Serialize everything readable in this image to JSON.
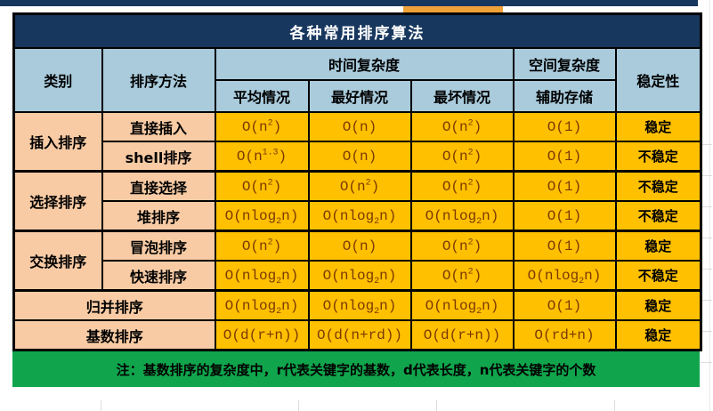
{
  "title": "各种常用排序算法",
  "header": {
    "category": "类别",
    "method": "排序方法",
    "time_complexity": "时间复杂度",
    "space_complexity": "空间复杂度",
    "stability": "稳定性",
    "avg": "平均情况",
    "best": "最好情况",
    "worst": "最坏情况",
    "aux": "辅助存储"
  },
  "rows": [
    {
      "category": "插入排序",
      "method": "直接插入",
      "avg": "O(n^{2})",
      "best": "O(n)",
      "worst": "O(n^{2})",
      "aux": "O(1)",
      "stability": "稳定"
    },
    {
      "category": "插入排序",
      "method": "shell排序",
      "avg": "O(n^{1.3})",
      "best": "O(n)",
      "worst": "O(n^{2})",
      "aux": "O(1)",
      "stability": "不稳定"
    },
    {
      "category": "选择排序",
      "method": "直接选择",
      "avg": "O(n^{2})",
      "best": "O(n^{2})",
      "worst": "O(n^{2})",
      "aux": "O(1)",
      "stability": "不稳定"
    },
    {
      "category": "选择排序",
      "method": "堆排序",
      "avg": "O(nlog_{2}n)",
      "best": "O(nlog_{2}n)",
      "worst": "O(nlog_{2}n)",
      "aux": "O(1)",
      "stability": "不稳定"
    },
    {
      "category": "交换排序",
      "method": "冒泡排序",
      "avg": "O(n^{2})",
      "best": "O(n)",
      "worst": "O(n^{2})",
      "aux": "O(1)",
      "stability": "稳定"
    },
    {
      "category": "交换排序",
      "method": "快速排序",
      "avg": "O(nlog_{2}n)",
      "best": "O(nlog_{2}n)",
      "worst": "O(n^{2})",
      "aux": "O(nlog_{2}n)",
      "stability": "不稳定"
    },
    {
      "category": "归并排序",
      "method": "归并排序",
      "avg": "O(nlog_{2}n)",
      "best": "O(nlog_{2}n)",
      "worst": "O(nlog_{2}n)",
      "aux": "O(1)",
      "stability": "稳定"
    },
    {
      "category": "基数排序",
      "method": "基数排序",
      "avg": "O(d(r+n))",
      "best": "O(d(n+rd))",
      "worst": "O(d(r+n))",
      "aux": "O(rd+n)",
      "stability": "稳定"
    }
  ],
  "note": "注：基数排序的复杂度中，r代表关键字的基数，d代表长度，n代表关键字的个数",
  "colors": {
    "title_bar": "#17375E",
    "header_fill": "#A9CBDC",
    "category_fill": "#F8CBA4",
    "data_fill": "#FFC000",
    "note_fill": "#10A54C",
    "complexity_text": "#7B3900",
    "top_fragment_orange": "#F0A238",
    "border": "#000000"
  },
  "chart_data": {
    "type": "table",
    "title": "各种常用排序算法",
    "columns": [
      "类别",
      "排序方法",
      "平均情况",
      "最好情况",
      "最坏情况",
      "辅助存储",
      "稳定性"
    ],
    "column_groups": [
      {
        "label": "时间复杂度",
        "spans": [
          "平均情况",
          "最好情况",
          "最坏情况"
        ]
      },
      {
        "label": "空间复杂度",
        "spans": [
          "辅助存储"
        ]
      }
    ],
    "rows": [
      [
        "插入排序",
        "直接插入",
        "O(n²)",
        "O(n)",
        "O(n²)",
        "O(1)",
        "稳定"
      ],
      [
        "插入排序",
        "shell排序",
        "O(n¹·³)",
        "O(n)",
        "O(n²)",
        "O(1)",
        "不稳定"
      ],
      [
        "选择排序",
        "直接选择",
        "O(n²)",
        "O(n²)",
        "O(n²)",
        "O(1)",
        "不稳定"
      ],
      [
        "选择排序",
        "堆排序",
        "O(nlog₂n)",
        "O(nlog₂n)",
        "O(nlog₂n)",
        "O(1)",
        "不稳定"
      ],
      [
        "交换排序",
        "冒泡排序",
        "O(n²)",
        "O(n)",
        "O(n²)",
        "O(1)",
        "稳定"
      ],
      [
        "交换排序",
        "快速排序",
        "O(nlog₂n)",
        "O(nlog₂n)",
        "O(n²)",
        "O(nlog₂n)",
        "不稳定"
      ],
      [
        "归并排序",
        "归并排序",
        "O(nlog₂n)",
        "O(nlog₂n)",
        "O(nlog₂n)",
        "O(1)",
        "稳定"
      ],
      [
        "基数排序",
        "基数排序",
        "O(d(r+n))",
        "O(d(n+rd))",
        "O(d(r+n))",
        "O(rd+n)",
        "稳定"
      ]
    ],
    "note": "注：基数排序的复杂度中，r代表关键字的基数，d代表长度，n代表关键字的个数"
  }
}
